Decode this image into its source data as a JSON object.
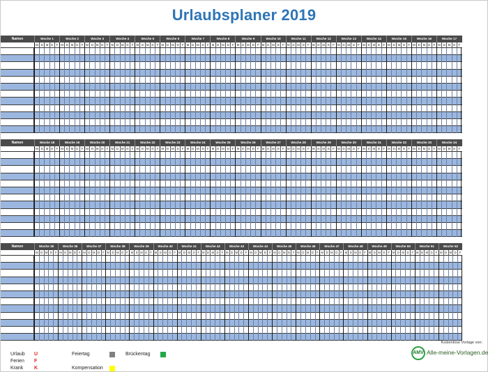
{
  "title": "Urlaubsplaner 2019",
  "name_header": "Namen",
  "day_letters": [
    "M",
    "D",
    "M",
    "D",
    "F"
  ],
  "blocks": [
    {
      "weeks": [
        "Woche 1",
        "Woche 2",
        "Woche 3",
        "Woche 4",
        "Woche 5",
        "Woche 6",
        "Woche 7",
        "Woche 8",
        "Woche 9",
        "Woche 10",
        "Woche 11",
        "Woche 12",
        "Woche 13",
        "Woche 14",
        "Woche 15",
        "Woche 16",
        "Woche 17"
      ]
    },
    {
      "weeks": [
        "Woche 18",
        "Woche 19",
        "Woche 20",
        "Woche 21",
        "Woche 22",
        "Woche 23",
        "Woche 24",
        "Woche 25",
        "Woche 26",
        "Woche 27",
        "Woche 28",
        "Woche 29",
        "Woche 30",
        "Woche 31",
        "Woche 32",
        "Woche 33",
        "Woche 34"
      ]
    },
    {
      "weeks": [
        "Woche 35",
        "Woche 36",
        "Woche 37",
        "Woche 38",
        "Woche 39",
        "Woche 40",
        "Woche 41",
        "Woche 42",
        "Woche 43",
        "Woche 44",
        "Woche 45",
        "Woche 46",
        "Woche 47",
        "Woche 48",
        "Woche 49",
        "Woche 50",
        "Woche 51",
        "Woche 52"
      ]
    }
  ],
  "legend": {
    "urlaub": {
      "label": "Urlaub",
      "code": "U"
    },
    "ferien": {
      "label": "Ferien",
      "code": "F"
    },
    "krank": {
      "label": "Krank",
      "code": "K"
    },
    "feiertag": {
      "label": "Feiertag",
      "color": "#808080"
    },
    "brueckentag": {
      "label": "Brückentag",
      "color": "#22a84a"
    },
    "kompensation": {
      "label": "Kompensation",
      "color": "#ffff00"
    }
  },
  "credit": "Kostenlose Vorlage von:",
  "logo": {
    "mark": "AMV",
    "text": "Alle-meine-Vorlagen.de"
  },
  "colors": {
    "title": "#2e75b6",
    "header_bg": "#4a4a4a",
    "stripe": "#9bb7df",
    "code": "#e02020"
  }
}
